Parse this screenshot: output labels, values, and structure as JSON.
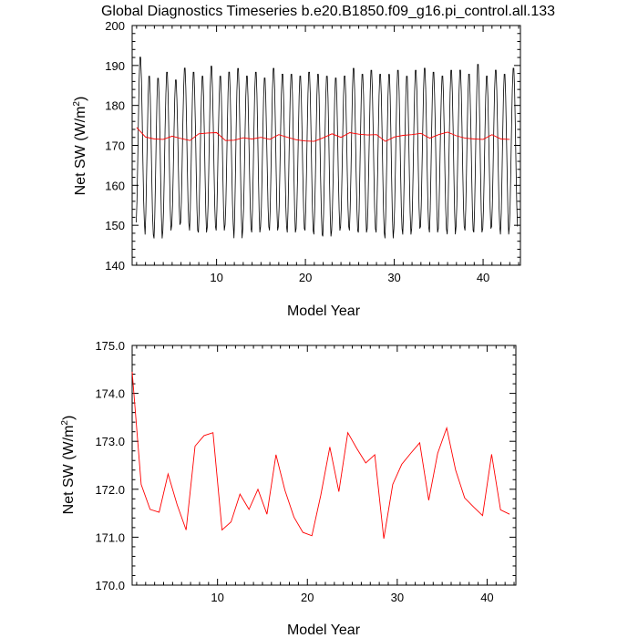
{
  "title": "Global Diagnostics Timeseries b.e20.B1850.f09_g16.pi_control.all.133",
  "colors": {
    "monthly": "#000000",
    "annual": "#ff0000"
  },
  "chart_data": [
    {
      "type": "line",
      "xlabel": "Model Year",
      "ylabel_main": "Net SW (W/m",
      "ylabel_sup": "2",
      "ylabel_close": ")",
      "xlim": [
        0.5,
        44.2
      ],
      "ylim": [
        140,
        200
      ],
      "xticks": [
        10,
        20,
        30,
        40
      ],
      "xtick_labels": [
        "10",
        "20",
        "30",
        "40"
      ],
      "yticks": [
        140,
        150,
        160,
        170,
        180,
        190,
        200
      ],
      "ytick_labels": [
        "140",
        "150",
        "160",
        "170",
        "180",
        "190",
        "200"
      ],
      "series": [
        {
          "style": "monthly",
          "seasonal_max": [
            192.8,
            188.0,
            187.5,
            189.0,
            187.0,
            190.0,
            189.0,
            188.0,
            190.5,
            188.0,
            189.0,
            190.0,
            188.0,
            189.0,
            187.5,
            190.0,
            188.5,
            188.5,
            188.0,
            189.0,
            188.5,
            188.0,
            187.5,
            188.0,
            190.0,
            188.5,
            189.5,
            188.5,
            188.5,
            189.5,
            188.0,
            189.5,
            190.0,
            189.0,
            188.0,
            189.5,
            189.5,
            188.5,
            191.0,
            188.0,
            189.5,
            188.5,
            190.0
          ],
          "seasonal_min": [
            150.0,
            147.0,
            146.0,
            148.0,
            149.5,
            150.0,
            148.0,
            147.5,
            149.0,
            148.0,
            149.5,
            146.0,
            148.5,
            147.5,
            149.0,
            148.0,
            149.0,
            147.5,
            148.5,
            148.0,
            147.0,
            146.5,
            148.0,
            149.0,
            148.0,
            147.5,
            148.5,
            147.5,
            146.0,
            148.5,
            147.0,
            148.5,
            149.0,
            147.5,
            148.5,
            147.0,
            149.0,
            148.0,
            147.5,
            148.5,
            149.0,
            147.0,
            149.0
          ]
        },
        {
          "style": "annual",
          "x": [
            1.0,
            2.0,
            3.0,
            4.0,
            5.0,
            6.0,
            7.0,
            8.0,
            9.0,
            10.0,
            11.0,
            12.0,
            13.0,
            14.0,
            15.0,
            16.0,
            17.0,
            18.0,
            19.0,
            20.0,
            21.0,
            22.0,
            23.0,
            24.0,
            25.0,
            26.0,
            27.0,
            28.0,
            29.0,
            30.0,
            31.0,
            32.0,
            33.0,
            34.0,
            35.0,
            36.0,
            37.0,
            38.0,
            39.0,
            40.0,
            41.0,
            42.0,
            43.0
          ],
          "y": [
            174.5,
            172.1,
            171.6,
            171.5,
            172.3,
            171.7,
            171.2,
            172.9,
            173.1,
            173.2,
            171.2,
            171.3,
            171.9,
            171.6,
            172.0,
            171.5,
            172.7,
            172.0,
            171.4,
            171.1,
            171.0,
            171.9,
            172.9,
            172.0,
            173.2,
            172.8,
            172.6,
            172.7,
            171.0,
            172.1,
            172.5,
            172.7,
            173.0,
            171.8,
            172.7,
            173.3,
            172.4,
            171.8,
            171.6,
            171.5,
            172.7,
            171.6,
            171.5
          ]
        }
      ]
    },
    {
      "type": "line",
      "xlabel": "Model Year",
      "ylabel_main": "Net SW (W/m",
      "ylabel_sup": "2",
      "ylabel_close": ")",
      "xlim": [
        0.5,
        43.2
      ],
      "ylim": [
        170,
        175
      ],
      "xticks": [
        10,
        20,
        30,
        40
      ],
      "xtick_labels": [
        "10",
        "20",
        "30",
        "40"
      ],
      "yticks": [
        170,
        171,
        172,
        173,
        174,
        175
      ],
      "ytick_labels": [
        "170.0",
        "171.0",
        "172.0",
        "173.0",
        "174.0",
        "175.0"
      ],
      "series": [
        {
          "style": "annual",
          "x": [
            0.5,
            1.5,
            2.5,
            3.5,
            4.5,
            5.5,
            6.5,
            7.5,
            8.5,
            9.5,
            10.5,
            11.5,
            12.5,
            13.5,
            14.5,
            15.5,
            16.5,
            17.5,
            18.5,
            19.5,
            20.5,
            21.5,
            22.5,
            23.5,
            24.5,
            25.5,
            26.5,
            27.5,
            28.5,
            29.5,
            30.5,
            31.5,
            32.5,
            33.5,
            34.5,
            35.5,
            36.5,
            37.5,
            38.5,
            39.5,
            40.5,
            41.5,
            42.5
          ],
          "y": [
            174.45,
            172.1,
            171.58,
            171.52,
            172.32,
            171.68,
            171.15,
            172.9,
            173.12,
            173.18,
            171.15,
            171.32,
            171.9,
            171.58,
            172.0,
            171.48,
            172.72,
            171.98,
            171.42,
            171.1,
            171.03,
            171.88,
            172.88,
            171.95,
            173.18,
            172.85,
            172.55,
            172.72,
            170.97,
            172.1,
            172.52,
            172.75,
            172.97,
            171.77,
            172.75,
            173.28,
            172.4,
            171.82,
            171.63,
            171.45,
            172.73,
            171.57,
            171.48
          ]
        }
      ]
    }
  ]
}
